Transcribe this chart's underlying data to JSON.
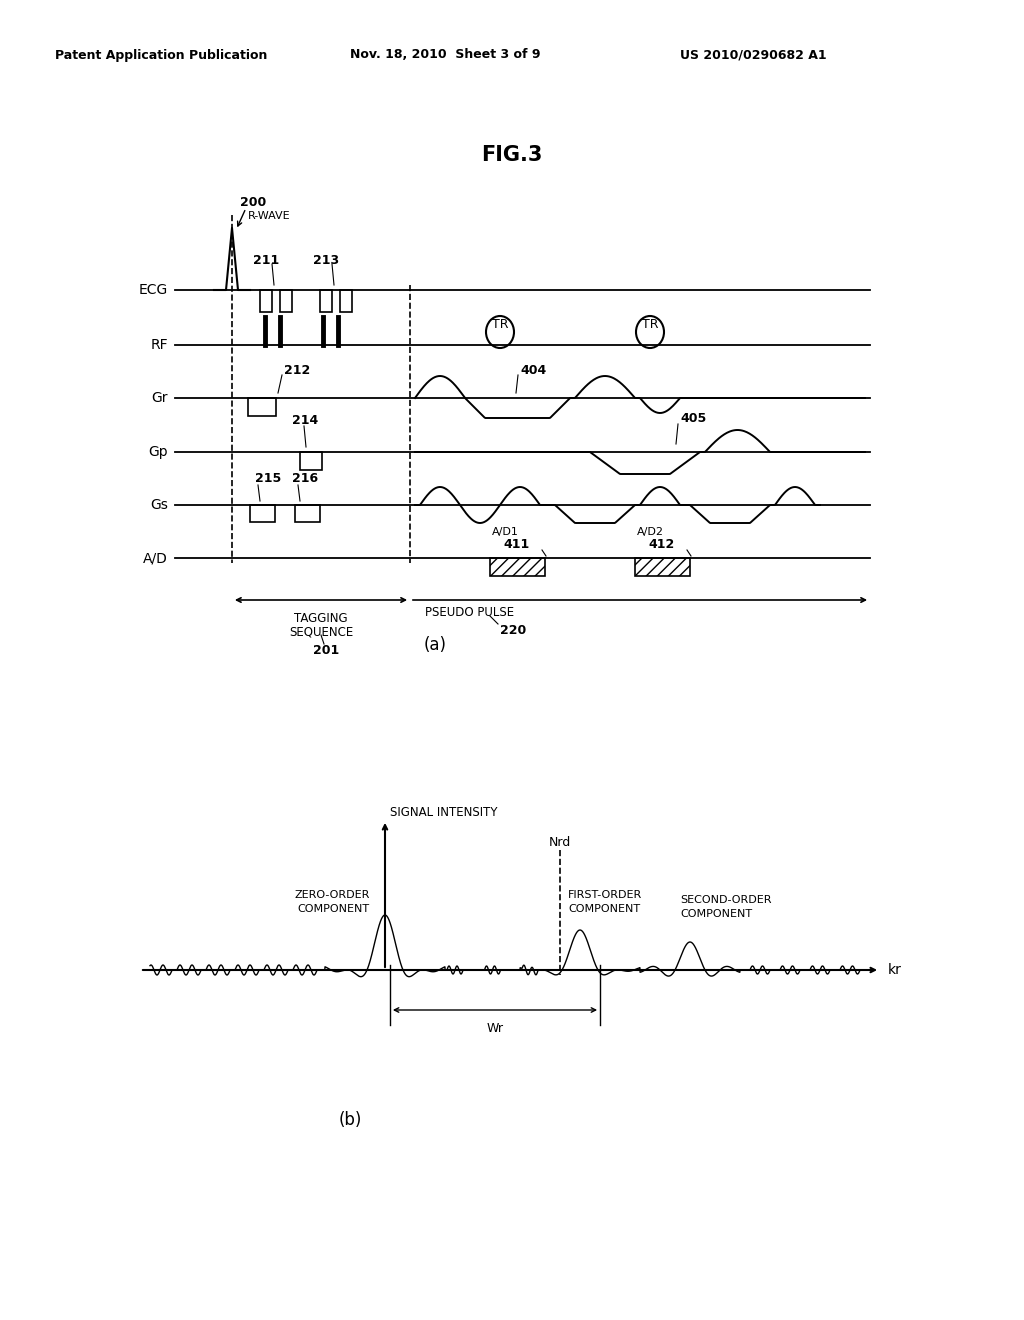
{
  "title": "FIG.3",
  "header_left": "Patent Application Publication",
  "header_center": "Nov. 18, 2010  Sheet 3 of 9",
  "header_right": "US 2010/0290682 A1",
  "bg_color": "#ffffff",
  "text_color": "#000000"
}
